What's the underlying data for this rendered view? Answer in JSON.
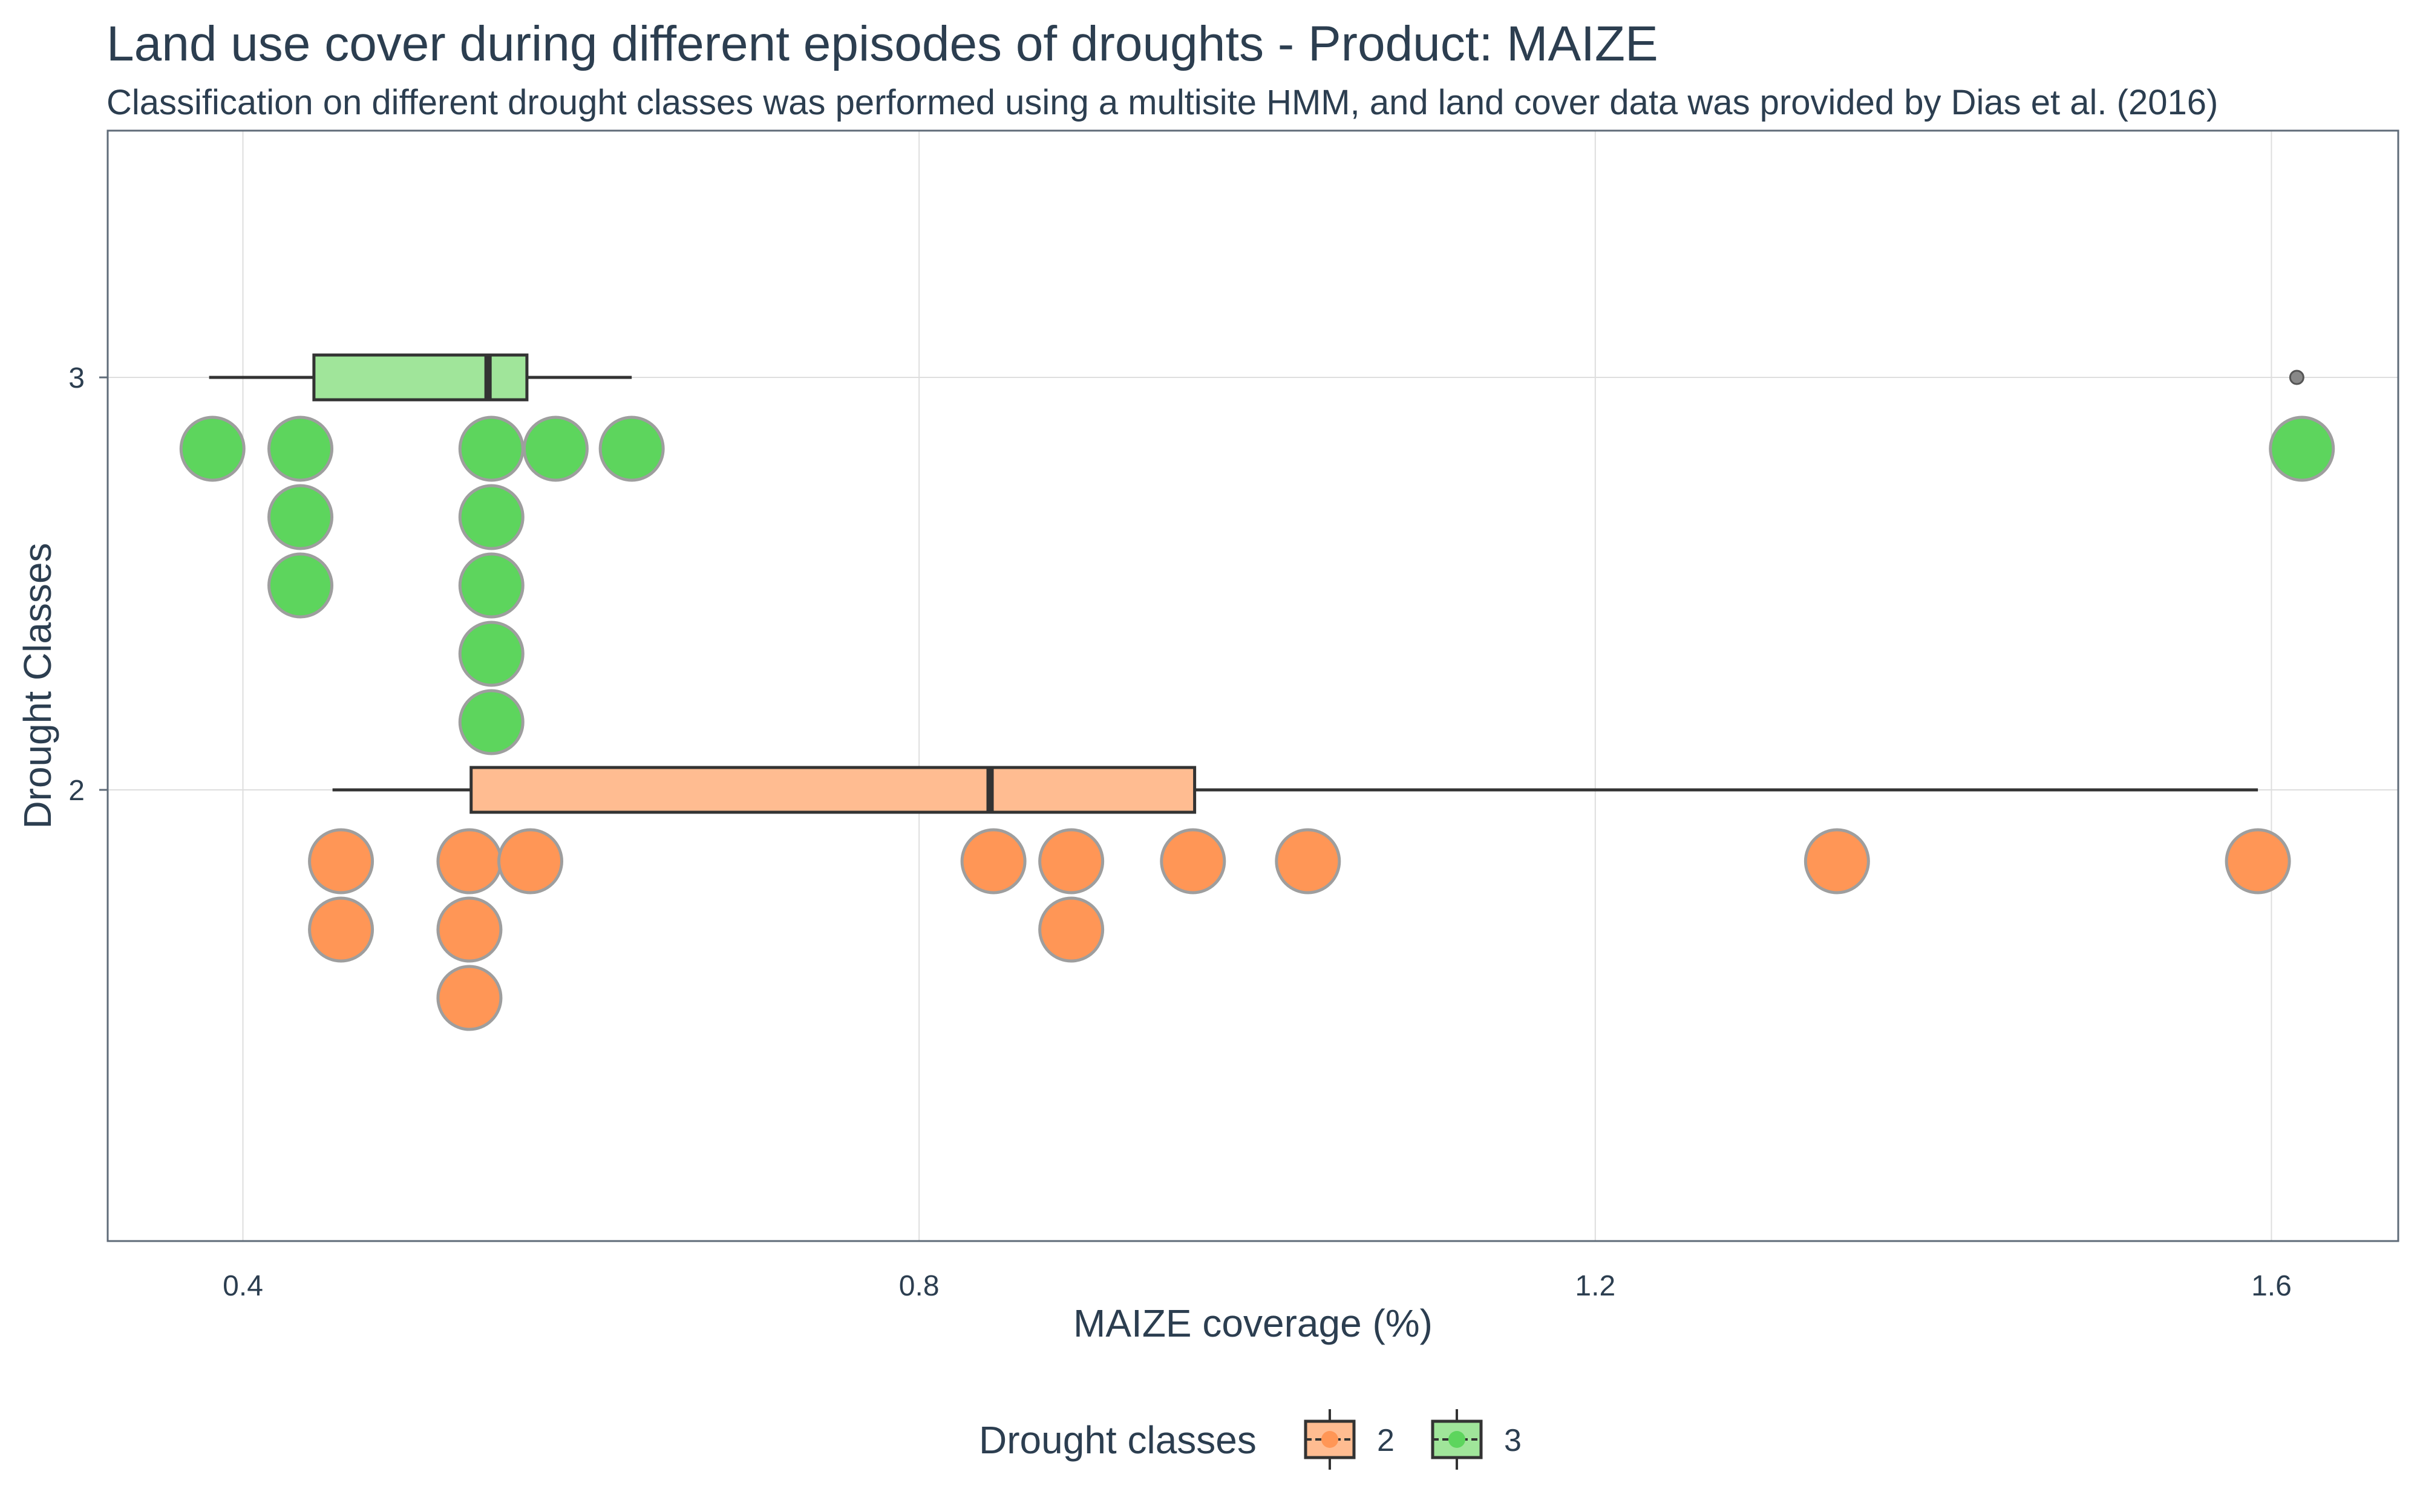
{
  "chart_data": {
    "type": "box_dotplot",
    "title": "Land use cover during different episodes of droughts - Product: MAIZE",
    "subtitle": "Classification on different drought classes was performed using a multisite HMM, and land cover data was provided by Dias et al. (2016)",
    "xlabel": "MAIZE coverage (%)",
    "ylabel": "Drought Classes",
    "xlim": [
      0.32,
      1.675
    ],
    "x_ticks": [
      0.4,
      0.8,
      1.2,
      1.6
    ],
    "x_tick_labels": [
      "0.4",
      "0.8",
      "1.2",
      "1.6"
    ],
    "y_categories": [
      "2",
      "3"
    ],
    "grid": true,
    "legend": {
      "title": "Drought classes",
      "position": "bottom",
      "entries": [
        "2",
        "3"
      ]
    },
    "series": [
      {
        "name": "2",
        "category": "2",
        "color": "#ff9656",
        "box_fill": "#ffbc91",
        "box": {
          "whisker_low": 0.453,
          "q1": 0.535,
          "median": 0.842,
          "q3": 0.963,
          "whisker_high": 1.592
        },
        "outliers": [],
        "points": [
          0.458,
          0.458,
          0.534,
          0.534,
          0.534,
          0.57,
          0.844,
          0.89,
          0.89,
          0.962,
          1.03,
          1.343,
          1.592
        ]
      },
      {
        "name": "3",
        "category": "3",
        "color": "#5dd55d",
        "box_fill": "#a0e59a",
        "box": {
          "whisker_low": 0.38,
          "q1": 0.442,
          "median": 0.545,
          "q3": 0.568,
          "whisker_high": 0.63
        },
        "outliers": [
          1.615
        ],
        "points": [
          0.382,
          0.434,
          0.434,
          0.434,
          0.547,
          0.547,
          0.547,
          0.547,
          0.547,
          0.585,
          0.63,
          1.618
        ]
      }
    ]
  }
}
